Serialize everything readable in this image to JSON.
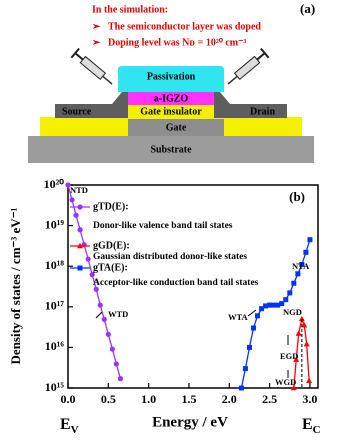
{
  "schematic": {
    "panel_label": "(a)",
    "notes": [
      "In the simulation:",
      "The semiconductor layer was doped",
      "Doping level was Nᴅ = 10²⁰ cm⁻³"
    ],
    "layers": {
      "passivation": "Passivation",
      "semiconductor": "a-IGZO",
      "source": "Source",
      "drain": "Drain",
      "insulator": "Gate insulator",
      "gate": "Gate",
      "substrate": "Substrate"
    }
  },
  "chart_data": {
    "type": "line",
    "panel_label": "(b)",
    "xlabel": "Energy / eV",
    "ylabel": "Density of states / cm⁻³ eV⁻¹",
    "x_left_label": {
      "text": "E",
      "sub": "V"
    },
    "x_right_label": {
      "text": "E",
      "sub": "C"
    },
    "log_y": true,
    "xlim": [
      0,
      3.1
    ],
    "ylim": [
      1000000000000000.0,
      1e+20
    ],
    "xticks": [
      {
        "value": 0,
        "label": "0.0"
      },
      0.5,
      {
        "value": 1,
        "label": "1.0"
      },
      1.5,
      {
        "value": 2,
        "label": "2.0"
      },
      2.5,
      {
        "value": 3,
        "label": "3.0"
      }
    ],
    "yticks": [
      {
        "value": 1000000000000000.0,
        "label": "10¹⁵"
      },
      {
        "value": 1e+16,
        "label": "10¹⁶"
      },
      {
        "value": 1e+17,
        "label": "10¹⁷"
      },
      {
        "value": 1e+18,
        "label": "10¹⁸"
      },
      {
        "value": 1e+19,
        "label": "10¹⁹"
      },
      {
        "value": 1e+20,
        "label": "10²⁰"
      }
    ],
    "series": [
      {
        "name": "gTD(E):",
        "description": "Donor-like valence band tail states",
        "color": "#9933ff",
        "marker": "circle",
        "x": [
          0,
          0.05,
          0.1,
          0.15,
          0.2,
          0.25,
          0.3,
          0.35,
          0.4,
          0.45,
          0.5,
          0.55,
          0.6,
          0.65
        ],
        "values": [
          1e+20,
          4.3e+19,
          1.8e+19,
          7.9e+18,
          3.4e+18,
          1.5e+18,
          6.2e+17,
          2.7e+17,
          1.1e+17,
          4.9e+16,
          2.1e+16,
          9100000000000000.0,
          3900000000000000.0,
          1700000000000000.0
        ]
      },
      {
        "name": "gGD(E):",
        "description": "Gaussian distributed donor-like states",
        "color": "#ff0000",
        "marker": "triangle",
        "x": [
          2.8,
          2.83,
          2.86,
          2.9,
          2.93,
          2.96,
          2.99
        ],
        "values": [
          1000000000000000.0,
          5000000000000000.0,
          2.2e+16,
          5e+16,
          3.5e+16,
          1.2e+16,
          1500000000000000.0
        ]
      },
      {
        "name": "gTA(E):",
        "description": "Acceptor-like conduction band tail states",
        "color": "#0033ff",
        "marker": "square",
        "x": [
          2.15,
          2.2,
          2.25,
          2.3,
          2.35,
          2.4,
          2.45,
          2.5,
          2.55,
          2.6,
          2.65,
          2.7,
          2.75,
          2.8,
          2.85,
          2.9,
          2.95,
          3.0
        ],
        "values": [
          1000000000000000.0,
          3000000000000000.0,
          1e+16,
          3e+16,
          6e+16,
          9e+16,
          1.05e+17,
          1.1e+17,
          1.1e+17,
          1.1e+17,
          1.2e+17,
          1.5e+17,
          2.2e+17,
          3.8e+17,
          6.5e+17,
          1.1e+18,
          2.2e+18,
          4.5e+18
        ]
      }
    ],
    "annotations": [
      "NTD",
      "WTD",
      "NTA",
      "WTA",
      "NGD",
      "EGD",
      "WGD"
    ]
  }
}
